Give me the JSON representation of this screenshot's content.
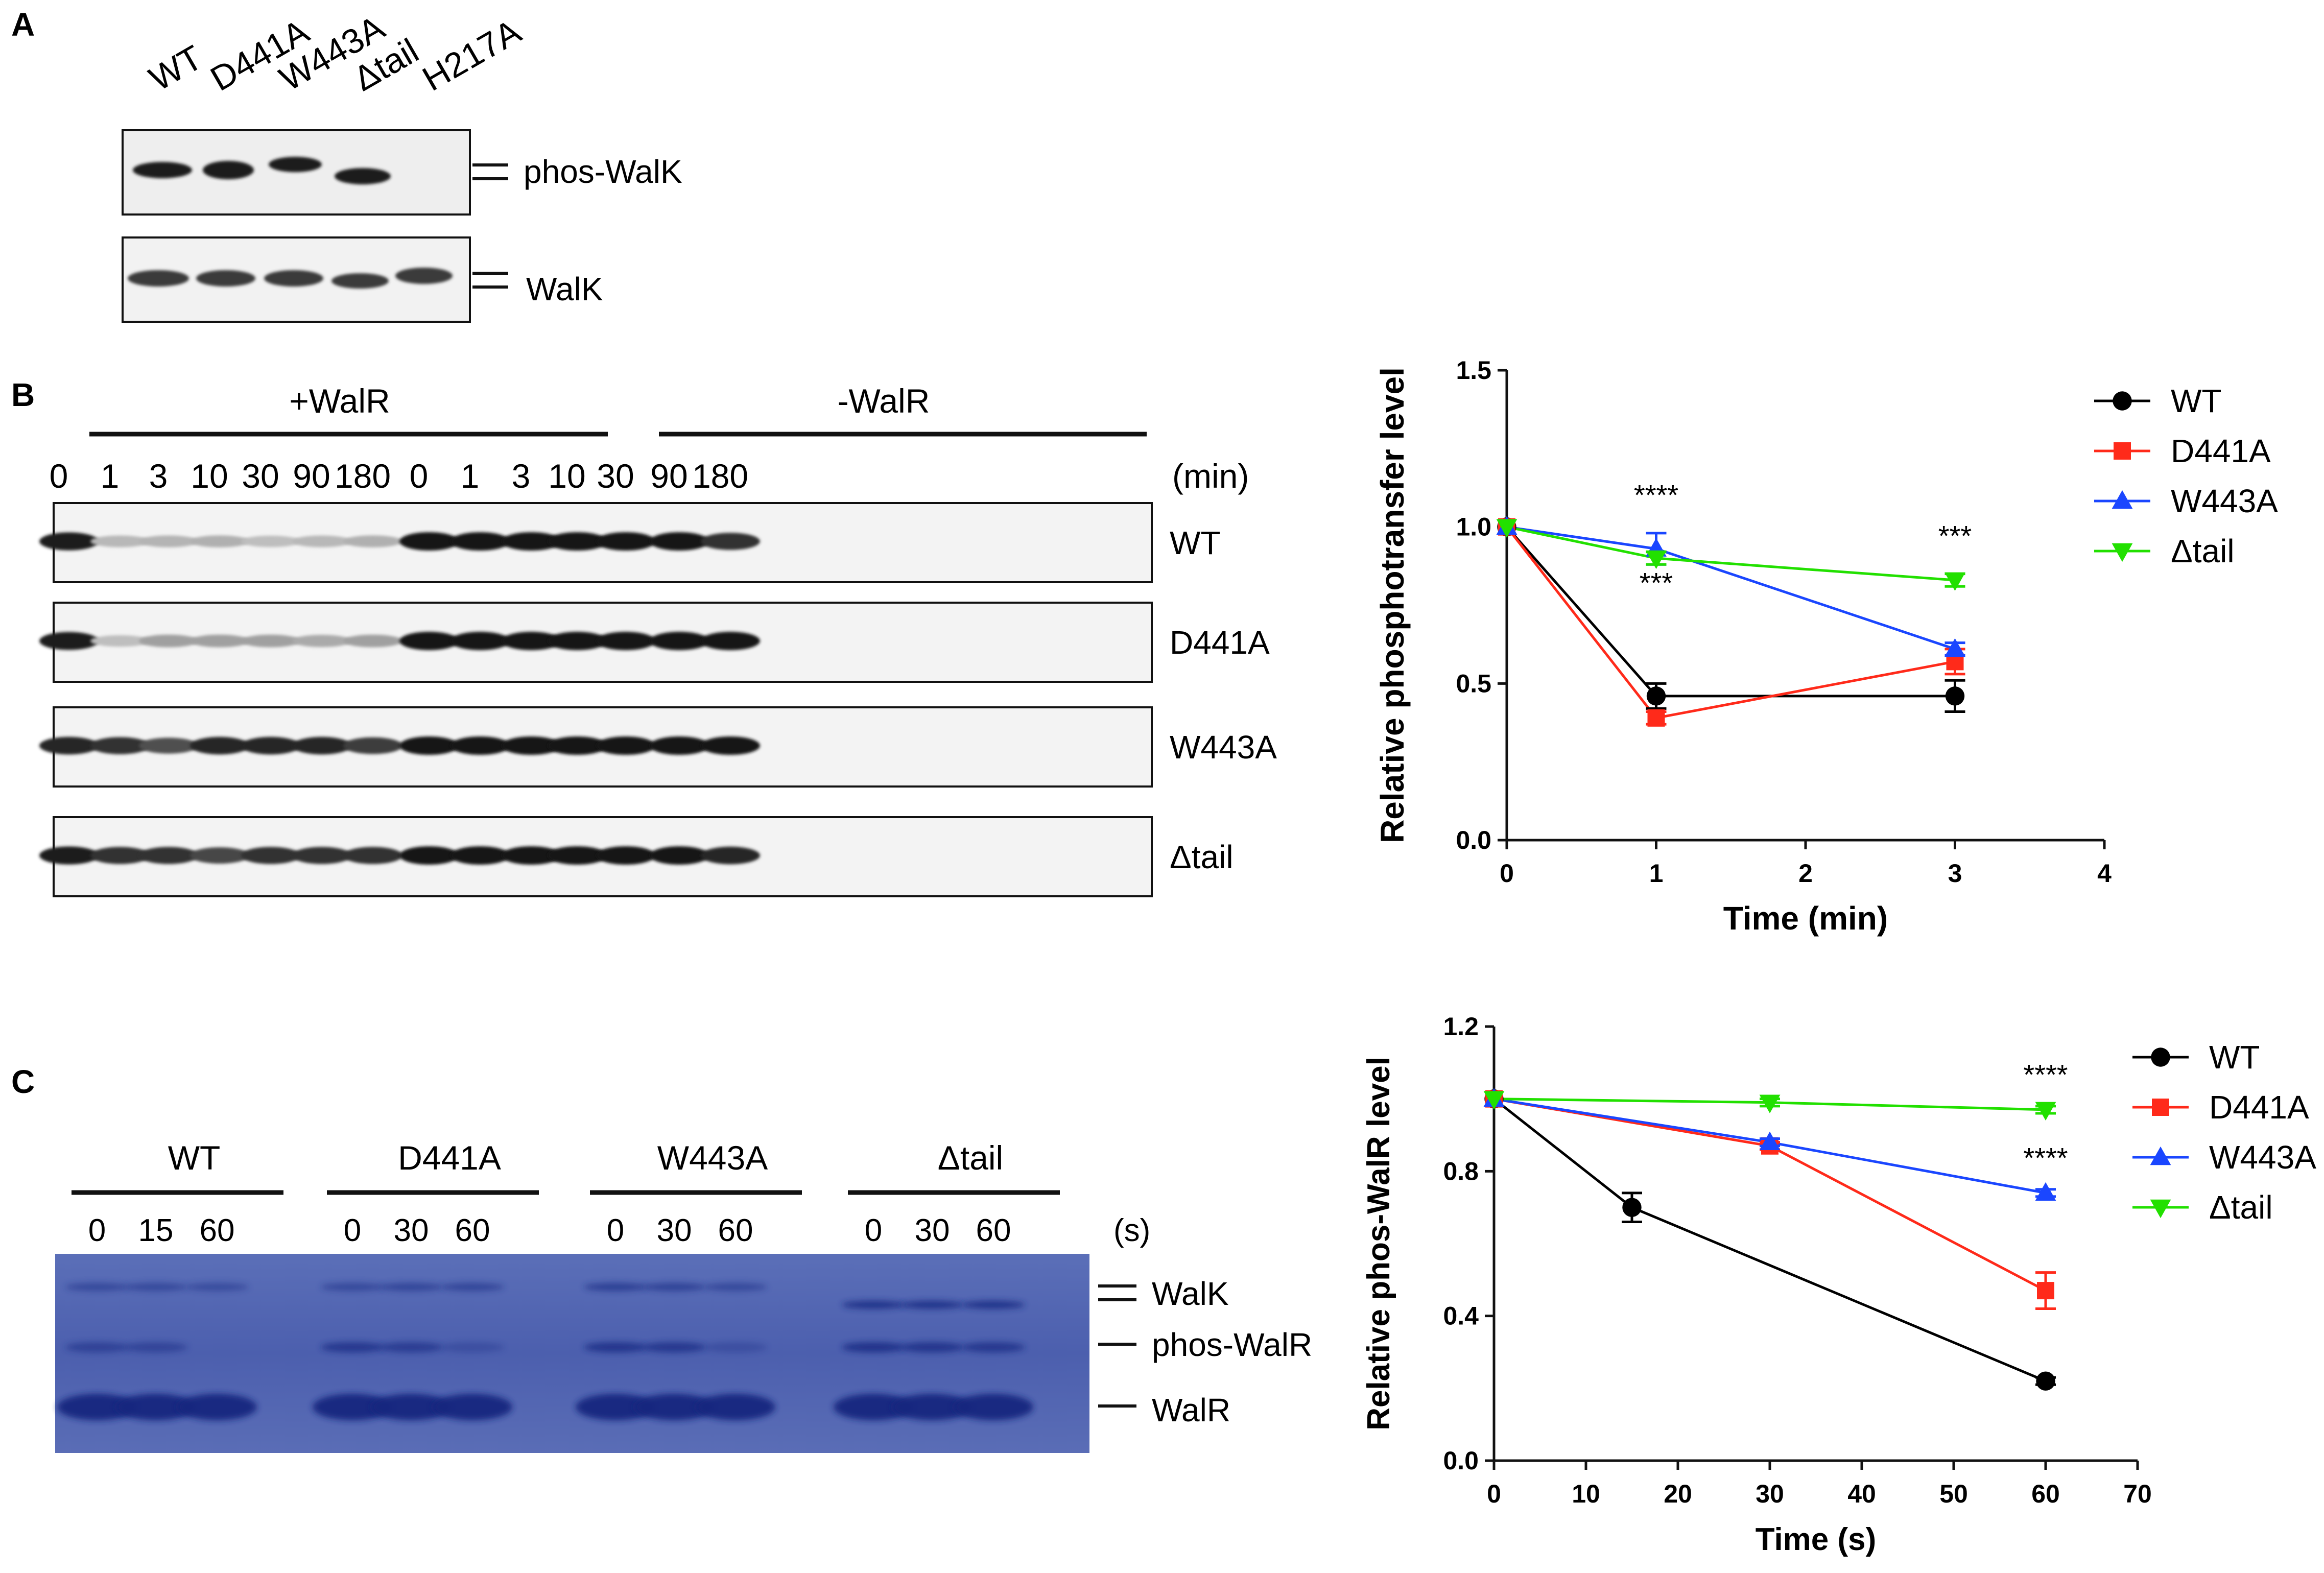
{
  "panels": {
    "a": {
      "letter": "A",
      "lanes": [
        "WT",
        "D441A",
        "W443A",
        "Δtail",
        "H217A"
      ],
      "blots": [
        "phos-WalK",
        "WalK"
      ]
    },
    "b": {
      "letter": "B",
      "groups": [
        "+WalR",
        "-WalR"
      ],
      "timepoints": [
        "0",
        "1",
        "3",
        "10",
        "30",
        "90",
        "180",
        "0",
        "1",
        "3",
        "10",
        "30",
        "90",
        "180"
      ],
      "unit": "(min)",
      "rows": [
        "WT",
        "D441A",
        "W443A",
        "Δtail"
      ]
    },
    "c": {
      "letter": "C",
      "groups": [
        {
          "label": "WT",
          "times": [
            "0",
            "15",
            "60"
          ]
        },
        {
          "label": "D441A",
          "times": [
            "0",
            "30",
            "60"
          ]
        },
        {
          "label": "W443A",
          "times": [
            "0",
            "30",
            "60"
          ]
        },
        {
          "label": "Δtail",
          "times": [
            "0",
            "30",
            "60"
          ]
        }
      ],
      "unit": "(s)",
      "bands": [
        "WalK",
        "phos-WalR",
        "WalR"
      ]
    }
  },
  "chart_data": [
    {
      "type": "line",
      "title": "",
      "xlabel": "Time (min)",
      "ylabel": "Relative phosphotransfer level",
      "xlim": [
        0,
        4
      ],
      "ylim": [
        0,
        1.5
      ],
      "xticks": [
        "0",
        "1",
        "2",
        "3",
        "4"
      ],
      "yticks": [
        "0.0",
        "0.5",
        "1.0",
        "1.5"
      ],
      "x": [
        0,
        1,
        3
      ],
      "series": [
        {
          "name": "WT",
          "color": "#000000",
          "marker": "circle",
          "values": [
            1.0,
            0.46,
            0.46
          ],
          "errors": [
            0,
            0.04,
            0.05
          ]
        },
        {
          "name": "D441A",
          "color": "#ff2a1a",
          "marker": "square",
          "values": [
            1.0,
            0.39,
            0.57
          ],
          "errors": [
            0,
            0.02,
            0.04
          ]
        },
        {
          "name": "W443A",
          "color": "#1a46ff",
          "marker": "triangle-up",
          "values": [
            1.0,
            0.93,
            0.61
          ],
          "errors": [
            0,
            0.05,
            0.02
          ]
        },
        {
          "name": "Δtail",
          "color": "#22e000",
          "marker": "triangle-down",
          "values": [
            1.0,
            0.9,
            0.83
          ],
          "errors": [
            0,
            0.02,
            0.02
          ]
        }
      ],
      "annotations": [
        {
          "text": "****",
          "x": 1,
          "y": 1.07
        },
        {
          "text": "***",
          "x": 1,
          "y": 0.79
        },
        {
          "text": "***",
          "x": 3,
          "y": 0.94
        }
      ],
      "legend": "right"
    },
    {
      "type": "line",
      "title": "",
      "xlabel": "Time (s)",
      "ylabel": "Relative phos-WalR level",
      "xlim": [
        0,
        70
      ],
      "ylim": [
        0,
        1.2
      ],
      "xticks": [
        "0",
        "10",
        "20",
        "30",
        "40",
        "50",
        "60",
        "70"
      ],
      "yticks": [
        "0.0",
        "0.4",
        "0.8",
        "1.2"
      ],
      "series": [
        {
          "name": "WT",
          "color": "#000000",
          "marker": "circle",
          "x": [
            0,
            15,
            60
          ],
          "values": [
            1.0,
            0.7,
            0.22
          ],
          "errors": [
            0,
            0.04,
            0.01
          ]
        },
        {
          "name": "D441A",
          "color": "#ff2a1a",
          "marker": "square",
          "x": [
            0,
            30,
            60
          ],
          "values": [
            1.0,
            0.87,
            0.47
          ],
          "errors": [
            0,
            0.01,
            0.05
          ]
        },
        {
          "name": "W443A",
          "color": "#1a46ff",
          "marker": "triangle-up",
          "x": [
            0,
            30,
            60
          ],
          "values": [
            1.0,
            0.88,
            0.74
          ],
          "errors": [
            0,
            0.01,
            0.01
          ]
        },
        {
          "name": "Δtail",
          "color": "#22e000",
          "marker": "triangle-down",
          "x": [
            0,
            30,
            60
          ],
          "values": [
            1.0,
            0.99,
            0.97
          ],
          "errors": [
            0,
            0.01,
            0.01
          ]
        }
      ],
      "annotations": [
        {
          "text": "****",
          "x": 60,
          "y": 1.04
        },
        {
          "text": "****",
          "x": 60,
          "y": 0.81
        }
      ],
      "legend": "right"
    }
  ]
}
